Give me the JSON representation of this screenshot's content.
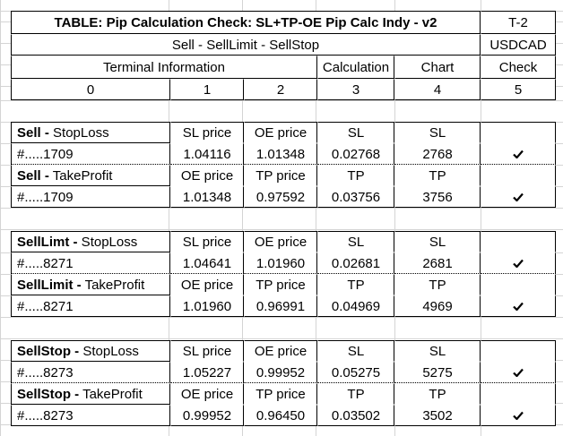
{
  "header": {
    "title": "TABLE:  Pip Calculation Check:  SL+TP-OE Pip Calc Indy - v2",
    "tag": "T-2",
    "subtitle": "Sell - SellLimit - SellStop",
    "symbol": "USDCAD",
    "terminal_info": "Terminal Information",
    "calculation": "Calculation",
    "chart": "Chart",
    "check": "Check",
    "col_nums": [
      "0",
      "1",
      "2",
      "3",
      "4",
      "5"
    ]
  },
  "groups": [
    {
      "sl_label_bold": "Sell -",
      "sl_label_rest": " StopLoss",
      "sl_hdr": [
        "SL price",
        "OE price",
        "SL",
        "SL"
      ],
      "sl_ticket": "#.....1709",
      "sl_vals": [
        "1.04116",
        "1.01348",
        "0.02768",
        "2768"
      ],
      "tp_label_bold": "Sell -",
      "tp_label_rest": " TakeProfit",
      "tp_hdr": [
        "OE price",
        "TP price",
        "TP",
        "TP"
      ],
      "tp_ticket": "#.....1709",
      "tp_vals": [
        "1.01348",
        "0.97592",
        "0.03756",
        "3756"
      ]
    },
    {
      "sl_label_bold": "SellLimt -",
      "sl_label_rest": " StopLoss",
      "sl_hdr": [
        "SL price",
        "OE price",
        "SL",
        "SL"
      ],
      "sl_ticket": "#.....8271",
      "sl_vals": [
        "1.04641",
        "1.01960",
        "0.02681",
        "2681"
      ],
      "tp_label_bold": "SellLimit -",
      "tp_label_rest": " TakeProfit",
      "tp_hdr": [
        "OE price",
        "TP price",
        "TP",
        "TP"
      ],
      "tp_ticket": "#.....8271",
      "tp_vals": [
        "1.01960",
        "0.96991",
        "0.04969",
        "4969"
      ]
    },
    {
      "sl_label_bold": "SellStop -",
      "sl_label_rest": " StopLoss",
      "sl_hdr": [
        "SL price",
        "OE price",
        "SL",
        "SL"
      ],
      "sl_ticket": "#.....8273",
      "sl_vals": [
        "1.05227",
        "0.99952",
        "0.05275",
        "5275"
      ],
      "tp_label_bold": "SellStop -",
      "tp_label_rest": " TakeProfit",
      "tp_hdr": [
        "OE price",
        "TP price",
        "TP",
        "TP"
      ],
      "tp_ticket": "#.....8273",
      "tp_vals": [
        "0.99952",
        "0.96450",
        "0.03502",
        "3502"
      ]
    }
  ],
  "icons": {
    "check": "check-mark-icon"
  }
}
